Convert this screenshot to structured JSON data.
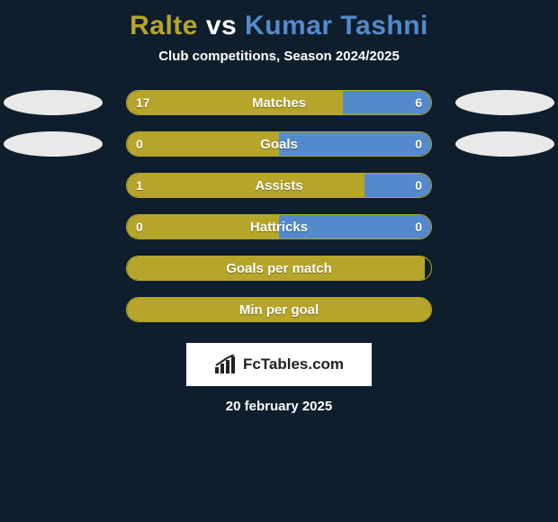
{
  "title": {
    "p1": "Ralte",
    "vs": "vs",
    "p2": "Kumar Tashni"
  },
  "subtitle": "Club competitions, Season 2024/2025",
  "colors": {
    "p1": "#b6a52b",
    "p2": "#548acc",
    "ellipse_left": "#e9e9e9",
    "ellipse_right": "#e9e9e9",
    "bar_border": "#b6a52b",
    "background": "#0f1e2d",
    "text": "#ffffff"
  },
  "track_width": 340,
  "stats": [
    {
      "label": "Matches",
      "left_val": "17",
      "right_val": "6",
      "left_pct": 71,
      "right_pct": 29,
      "show_vals": true,
      "show_ellipses": true
    },
    {
      "label": "Goals",
      "left_val": "0",
      "right_val": "0",
      "left_pct": 50,
      "right_pct": 50,
      "show_vals": true,
      "show_ellipses": true
    },
    {
      "label": "Assists",
      "left_val": "1",
      "right_val": "0",
      "left_pct": 78,
      "right_pct": 22,
      "show_vals": true,
      "show_ellipses": false
    },
    {
      "label": "Hattricks",
      "left_val": "0",
      "right_val": "0",
      "left_pct": 50,
      "right_pct": 50,
      "show_vals": true,
      "show_ellipses": false
    },
    {
      "label": "Goals per match",
      "left_val": "",
      "right_val": "",
      "left_pct": 98,
      "right_pct": 0,
      "show_vals": false,
      "show_ellipses": false
    },
    {
      "label": "Min per goal",
      "left_val": "",
      "right_val": "",
      "left_pct": 100,
      "right_pct": 0,
      "show_vals": false,
      "show_ellipses": false
    }
  ],
  "footer": {
    "brand": "FcTables.com",
    "date": "20 february 2025"
  }
}
